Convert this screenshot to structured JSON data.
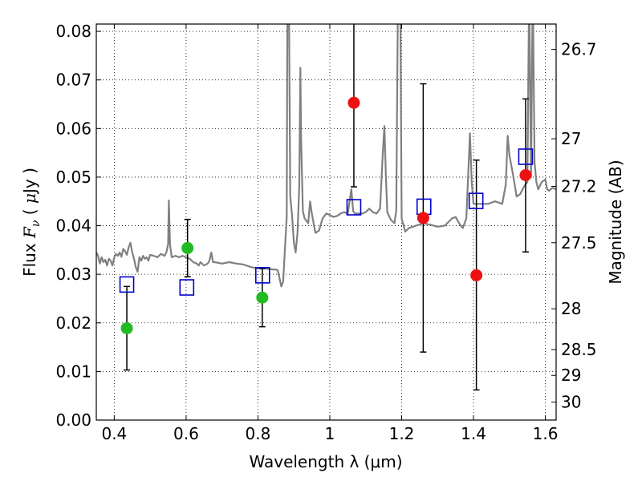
{
  "chart_data": {
    "type": "scatter",
    "xlabel": "Wavelength  λ (μm)",
    "ylabel_prefix": "Flux  ",
    "ylabel_symbol": "F",
    "ylabel_sub": "ν",
    "ylabel_mid": "  ( ",
    "ylabel_mu": "μ",
    "ylabel_suffix": "Jy )",
    "y2label": "Magnitude (AB)",
    "xlim": [
      0.35,
      1.63
    ],
    "ylim": [
      0.0,
      0.0815
    ],
    "x_ticks": [
      0.4,
      0.6,
      0.8,
      1.0,
      1.2,
      1.4,
      1.6
    ],
    "x_tick_labels": [
      "0.4",
      "0.6",
      "0.8",
      "1",
      "1.2",
      "1.4",
      "1.6"
    ],
    "y_ticks": [
      0.0,
      0.01,
      0.02,
      0.03,
      0.04,
      0.05,
      0.06,
      0.07,
      0.08
    ],
    "y_tick_labels": [
      "0.00",
      "0.01",
      "0.02",
      "0.03",
      "0.04",
      "0.05",
      "0.06",
      "0.07",
      "0.08"
    ],
    "y2_ticks": [
      {
        "label": "26.7",
        "flux": 0.0763
      },
      {
        "label": "27",
        "flux": 0.0579
      },
      {
        "label": "27.2",
        "flux": 0.0481
      },
      {
        "label": "27.5",
        "flux": 0.0365
      },
      {
        "label": "28",
        "flux": 0.0229
      },
      {
        "label": "28.5",
        "flux": 0.0145
      },
      {
        "label": "29",
        "flux": 0.0092
      },
      {
        "label": "30",
        "flux": 0.0037
      }
    ],
    "grid": true,
    "colors": {
      "spectrum": "#808080",
      "green": "#22bb22",
      "red": "#ee1111",
      "blue_square": "#0000cc",
      "errorbar": "#000000"
    },
    "series": [
      {
        "name": "model spectrum",
        "kind": "line",
        "points": [
          [
            0.35,
            0.0345
          ],
          [
            0.355,
            0.0338
          ],
          [
            0.36,
            0.0322
          ],
          [
            0.365,
            0.0335
          ],
          [
            0.37,
            0.0325
          ],
          [
            0.375,
            0.033
          ],
          [
            0.38,
            0.0318
          ],
          [
            0.385,
            0.0332
          ],
          [
            0.39,
            0.0328
          ],
          [
            0.395,
            0.0318
          ],
          [
            0.4,
            0.0335
          ],
          [
            0.405,
            0.0342
          ],
          [
            0.41,
            0.0338
          ],
          [
            0.415,
            0.0345
          ],
          [
            0.42,
            0.0336
          ],
          [
            0.425,
            0.0352
          ],
          [
            0.43,
            0.0348
          ],
          [
            0.435,
            0.034
          ],
          [
            0.44,
            0.0355
          ],
          [
            0.445,
            0.0365
          ],
          [
            0.45,
            0.0345
          ],
          [
            0.455,
            0.0332
          ],
          [
            0.46,
            0.0315
          ],
          [
            0.465,
            0.0305
          ],
          [
            0.47,
            0.0335
          ],
          [
            0.475,
            0.0328
          ],
          [
            0.48,
            0.0338
          ],
          [
            0.485,
            0.0332
          ],
          [
            0.49,
            0.0335
          ],
          [
            0.495,
            0.0328
          ],
          [
            0.5,
            0.034
          ],
          [
            0.51,
            0.0338
          ],
          [
            0.52,
            0.0335
          ],
          [
            0.53,
            0.0342
          ],
          [
            0.54,
            0.0338
          ],
          [
            0.545,
            0.0345
          ],
          [
            0.55,
            0.0362
          ],
          [
            0.552,
            0.0452
          ],
          [
            0.555,
            0.0362
          ],
          [
            0.56,
            0.0335
          ],
          [
            0.57,
            0.0338
          ],
          [
            0.58,
            0.0335
          ],
          [
            0.59,
            0.0338
          ],
          [
            0.6,
            0.0335
          ],
          [
            0.61,
            0.0332
          ],
          [
            0.62,
            0.0325
          ],
          [
            0.63,
            0.0322
          ],
          [
            0.635,
            0.0318
          ],
          [
            0.64,
            0.0325
          ],
          [
            0.65,
            0.0318
          ],
          [
            0.66,
            0.0322
          ],
          [
            0.665,
            0.0328
          ],
          [
            0.67,
            0.0345
          ],
          [
            0.675,
            0.0325
          ],
          [
            0.68,
            0.0325
          ],
          [
            0.7,
            0.0322
          ],
          [
            0.72,
            0.0325
          ],
          [
            0.74,
            0.0322
          ],
          [
            0.76,
            0.032
          ],
          [
            0.78,
            0.0315
          ],
          [
            0.8,
            0.0312
          ],
          [
            0.82,
            0.0312
          ],
          [
            0.84,
            0.031
          ],
          [
            0.85,
            0.031
          ],
          [
            0.855,
            0.0308
          ],
          [
            0.86,
            0.0292
          ],
          [
            0.865,
            0.0275
          ],
          [
            0.87,
            0.0285
          ],
          [
            0.875,
            0.035
          ],
          [
            0.88,
            0.042
          ],
          [
            0.882,
            0.09
          ],
          [
            0.886,
            0.09
          ],
          [
            0.89,
            0.046
          ],
          [
            0.895,
            0.042
          ],
          [
            0.9,
            0.0365
          ],
          [
            0.905,
            0.0345
          ],
          [
            0.91,
            0.0385
          ],
          [
            0.915,
            0.048
          ],
          [
            0.918,
            0.0725
          ],
          [
            0.92,
            0.058
          ],
          [
            0.925,
            0.043
          ],
          [
            0.93,
            0.0415
          ],
          [
            0.94,
            0.0405
          ],
          [
            0.945,
            0.045
          ],
          [
            0.95,
            0.0425
          ],
          [
            0.955,
            0.0405
          ],
          [
            0.96,
            0.0385
          ],
          [
            0.97,
            0.039
          ],
          [
            0.98,
            0.0415
          ],
          [
            0.99,
            0.0425
          ],
          [
            1.0,
            0.0422
          ],
          [
            1.01,
            0.0418
          ],
          [
            1.02,
            0.042
          ],
          [
            1.03,
            0.0425
          ],
          [
            1.04,
            0.0428
          ],
          [
            1.05,
            0.0425
          ],
          [
            1.06,
            0.0475
          ],
          [
            1.065,
            0.043
          ],
          [
            1.07,
            0.0425
          ],
          [
            1.08,
            0.0425
          ],
          [
            1.09,
            0.0425
          ],
          [
            1.1,
            0.0428
          ],
          [
            1.11,
            0.0435
          ],
          [
            1.12,
            0.0428
          ],
          [
            1.13,
            0.0425
          ],
          [
            1.14,
            0.0435
          ],
          [
            1.148,
            0.0555
          ],
          [
            1.152,
            0.0605
          ],
          [
            1.156,
            0.0505
          ],
          [
            1.16,
            0.0428
          ],
          [
            1.17,
            0.0412
          ],
          [
            1.18,
            0.0405
          ],
          [
            1.185,
            0.0432
          ],
          [
            1.19,
            0.09
          ],
          [
            1.196,
            0.09
          ],
          [
            1.2,
            0.0415
          ],
          [
            1.21,
            0.0388
          ],
          [
            1.22,
            0.0395
          ],
          [
            1.24,
            0.04
          ],
          [
            1.26,
            0.0405
          ],
          [
            1.28,
            0.0402
          ],
          [
            1.3,
            0.0398
          ],
          [
            1.32,
            0.04
          ],
          [
            1.34,
            0.0415
          ],
          [
            1.35,
            0.0418
          ],
          [
            1.36,
            0.0405
          ],
          [
            1.37,
            0.0395
          ],
          [
            1.38,
            0.0415
          ],
          [
            1.39,
            0.059
          ],
          [
            1.395,
            0.049
          ],
          [
            1.4,
            0.0445
          ],
          [
            1.42,
            0.0445
          ],
          [
            1.44,
            0.0445
          ],
          [
            1.46,
            0.045
          ],
          [
            1.48,
            0.0445
          ],
          [
            1.49,
            0.0485
          ],
          [
            1.495,
            0.0585
          ],
          [
            1.5,
            0.0545
          ],
          [
            1.51,
            0.0505
          ],
          [
            1.52,
            0.046
          ],
          [
            1.53,
            0.0465
          ],
          [
            1.54,
            0.048
          ],
          [
            1.55,
            0.049
          ],
          [
            1.555,
            0.09
          ],
          [
            1.56,
            0.05
          ],
          [
            1.565,
            0.09
          ],
          [
            1.57,
            0.053
          ],
          [
            1.575,
            0.049
          ],
          [
            1.58,
            0.0475
          ],
          [
            1.59,
            0.049
          ],
          [
            1.6,
            0.0495
          ],
          [
            1.605,
            0.0475
          ],
          [
            1.61,
            0.0472
          ],
          [
            1.62,
            0.0478
          ],
          [
            1.63,
            0.0475
          ]
        ]
      },
      {
        "name": "blue model squares",
        "kind": "square",
        "points": [
          {
            "x": 0.435,
            "y": 0.0279
          },
          {
            "x": 0.602,
            "y": 0.0273
          },
          {
            "x": 0.813,
            "y": 0.0298
          },
          {
            "x": 1.067,
            "y": 0.0438
          },
          {
            "x": 1.262,
            "y": 0.0439
          },
          {
            "x": 1.407,
            "y": 0.0451
          },
          {
            "x": 1.545,
            "y": 0.0542
          }
        ]
      },
      {
        "name": "green detections",
        "kind": "circle",
        "color": "green",
        "points": [
          {
            "x": 0.435,
            "y": 0.0189,
            "ylow": 0.0103,
            "yhigh": 0.0275
          },
          {
            "x": 0.604,
            "y": 0.0354,
            "ylow": 0.0295,
            "yhigh": 0.0413
          },
          {
            "x": 0.812,
            "y": 0.0252,
            "ylow": 0.0192,
            "yhigh": 0.0312
          }
        ]
      },
      {
        "name": "red detections",
        "kind": "circle",
        "color": "red",
        "points": [
          {
            "x": 1.067,
            "y": 0.0653,
            "ylow": 0.048,
            "yhigh": 0.09
          },
          {
            "x": 1.26,
            "y": 0.0416,
            "ylow": 0.014,
            "yhigh": 0.0692
          },
          {
            "x": 1.408,
            "y": 0.0298,
            "ylow": 0.0062,
            "yhigh": 0.0535
          },
          {
            "x": 1.545,
            "y": 0.0504,
            "ylow": 0.0346,
            "yhigh": 0.0661
          }
        ]
      }
    ]
  }
}
